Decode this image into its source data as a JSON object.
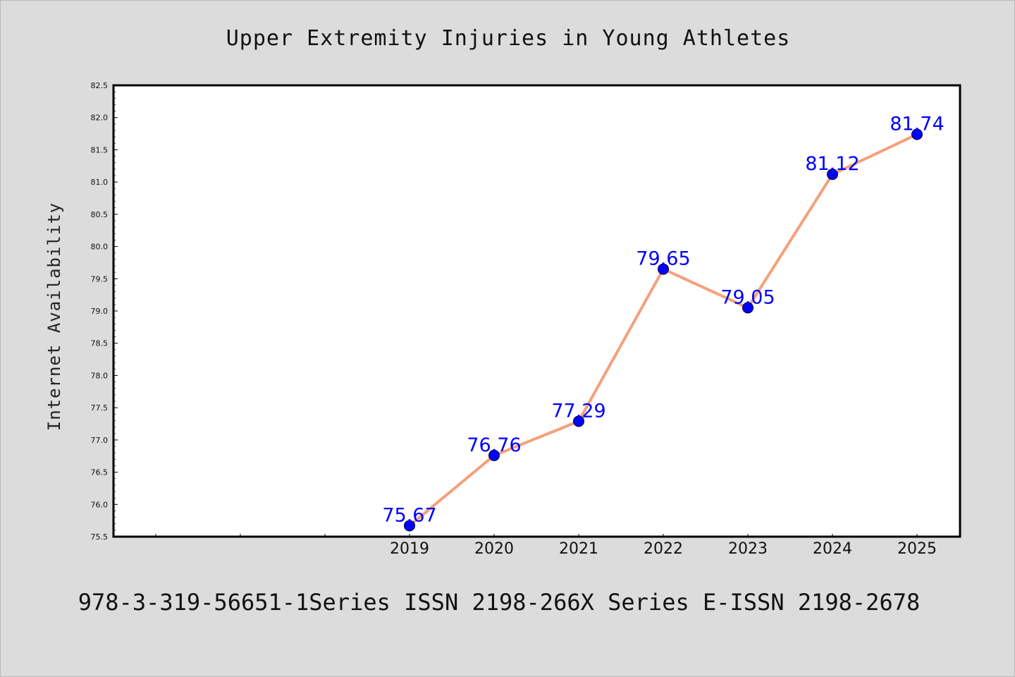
{
  "chart_data": {
    "type": "line",
    "title": "Upper Extremity Injuries in Young Athletes",
    "xlabel": "",
    "ylabel": "Internet Availability",
    "categories": [
      "2019",
      "2020",
      "2021",
      "2022",
      "2023",
      "2024",
      "2025"
    ],
    "series": [
      {
        "values": [
          75.67,
          76.76,
          77.29,
          79.65,
          79.05,
          81.12,
          81.74
        ],
        "data_labels": [
          "75.67",
          "76.76",
          "77.29",
          "79.65",
          "79.05",
          "81.12",
          "81.74"
        ],
        "line_color": "#f4a07a",
        "marker_color": "#0000ff"
      }
    ],
    "y_ticks": [
      "75.5",
      "76.0",
      "76.5",
      "77.0",
      "77.5",
      "78.0",
      "78.5",
      "79.0",
      "79.5",
      "80.0",
      "80.5",
      "81.0",
      "81.5",
      "82.0",
      "82.5"
    ],
    "ylim": [
      75.5,
      82.5
    ],
    "grid": false,
    "legend": "none",
    "data_label_color": "#0000ff",
    "plot_background": "#ffffff",
    "figure_background": "#dcdcdc"
  },
  "footer": {
    "text": "978-3-319-56651-1Series ISSN 2198-266X Series E-ISSN 2198-2678"
  }
}
